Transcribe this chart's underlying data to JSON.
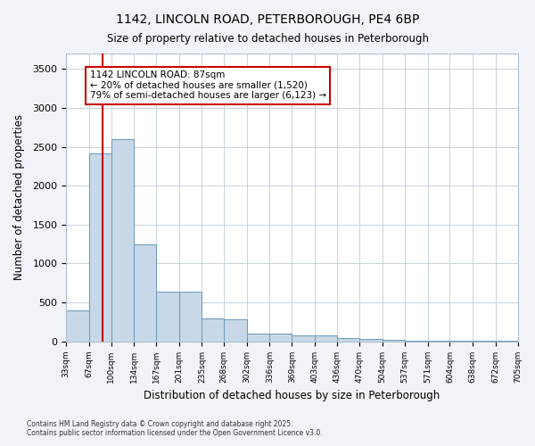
{
  "title1": "1142, LINCOLN ROAD, PETERBOROUGH, PE4 6BP",
  "title2": "Size of property relative to detached houses in Peterborough",
  "xlabel": "Distribution of detached houses by size in Peterborough",
  "ylabel": "Number of detached properties",
  "bar_color": "#c8d8e8",
  "bar_edge_color": "#6699bb",
  "vline_color": "#cc0000",
  "vline_x": 87,
  "annotation_title": "1142 LINCOLN ROAD: 87sqm",
  "annotation_line2": "← 20% of detached houses are smaller (1,520)",
  "annotation_line3": "79% of semi-detached houses are larger (6,123) →",
  "footer1": "Contains HM Land Registry data © Crown copyright and database right 2025.",
  "footer2": "Contains public sector information licensed under the Open Government Licence v3.0.",
  "bins": [
    33,
    67,
    100,
    134,
    167,
    201,
    235,
    268,
    302,
    336,
    369,
    403,
    436,
    470,
    504,
    537,
    571,
    604,
    638,
    672,
    705
  ],
  "counts": [
    400,
    2420,
    2600,
    1250,
    640,
    640,
    290,
    285,
    100,
    95,
    70,
    70,
    45,
    30,
    20,
    10,
    5,
    5,
    3,
    2
  ],
  "ylim": [
    0,
    3700
  ],
  "background_color": "#f0f4f8",
  "plot_bg_color": "#ffffff"
}
